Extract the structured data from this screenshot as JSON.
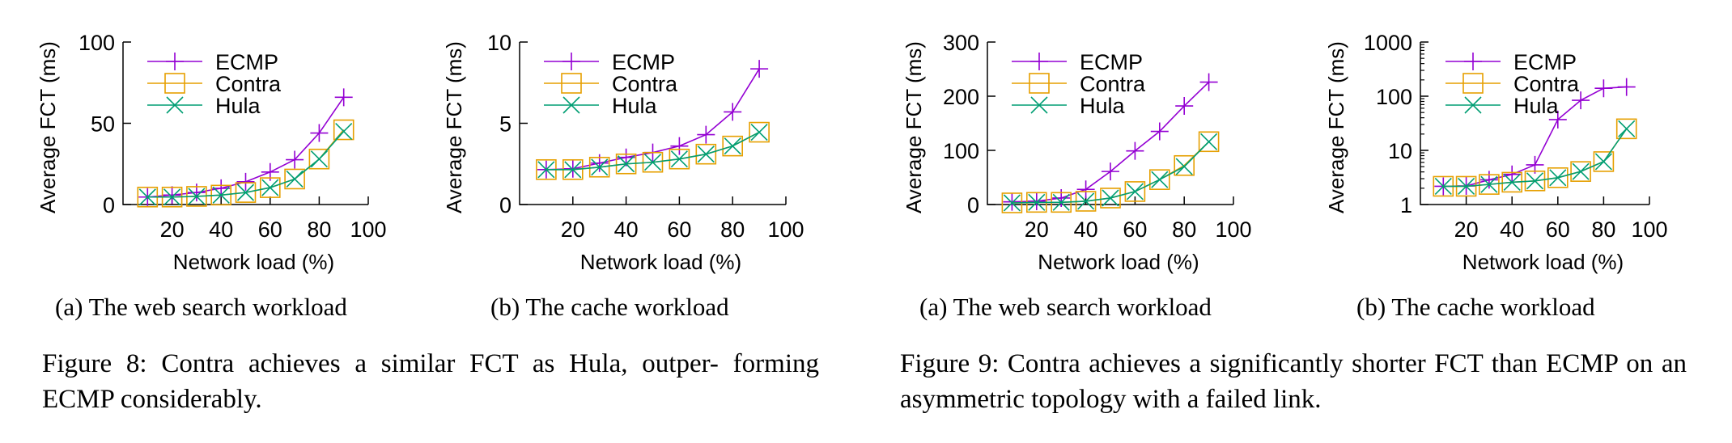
{
  "colors": {
    "ECMP": "#9400d3",
    "Contra": "#e69f00",
    "Hula": "#009e73"
  },
  "chart_data": [
    {
      "type": "line",
      "figure": "Figure 8",
      "subcaption": "(a) The web search workload",
      "xlabel": "Network load (%)",
      "ylabel": "Average FCT (ms)",
      "xlim": [
        0,
        100
      ],
      "xticks": [
        "20",
        "40",
        "60",
        "80",
        "100"
      ],
      "ylim": [
        0,
        100
      ],
      "yscale": "linear",
      "yticks": [
        "0",
        "50",
        "100"
      ],
      "legend_position": "top-left",
      "x": [
        10,
        20,
        30,
        40,
        50,
        60,
        70,
        80,
        90
      ],
      "series": [
        {
          "name": "ECMP",
          "marker": "plus",
          "values": [
            4.6,
            5.8,
            7.4,
            10,
            14,
            20,
            27.6,
            44,
            66
          ]
        },
        {
          "name": "Contra",
          "marker": "square",
          "values": [
            4.6,
            4.6,
            5,
            5.8,
            7.4,
            10.4,
            15.7,
            28,
            46
          ]
        },
        {
          "name": "Hula",
          "marker": "cross",
          "values": [
            4.6,
            4.6,
            5,
            5.8,
            7.4,
            10.4,
            15.7,
            28,
            45
          ]
        }
      ]
    },
    {
      "type": "line",
      "figure": "Figure 8",
      "subcaption": "(b) The cache workload",
      "xlabel": "Network load (%)",
      "ylabel": "Average FCT (ms)",
      "xlim": [
        0,
        100
      ],
      "xticks": [
        "20",
        "40",
        "60",
        "80",
        "100"
      ],
      "ylim": [
        0,
        10
      ],
      "yscale": "linear",
      "yticks": [
        "0",
        "5",
        "10"
      ],
      "legend_position": "top-left",
      "x": [
        10,
        20,
        30,
        40,
        50,
        60,
        70,
        80,
        90
      ],
      "series": [
        {
          "name": "ECMP",
          "marker": "plus",
          "values": [
            2.15,
            2.2,
            2.55,
            2.9,
            3.2,
            3.6,
            4.3,
            5.7,
            8.35
          ]
        },
        {
          "name": "Contra",
          "marker": "square",
          "values": [
            2.15,
            2.15,
            2.3,
            2.5,
            2.6,
            2.8,
            3.1,
            3.6,
            4.45
          ]
        },
        {
          "name": "Hula",
          "marker": "cross",
          "values": [
            2.15,
            2.15,
            2.3,
            2.5,
            2.6,
            2.8,
            3.1,
            3.6,
            4.45
          ]
        }
      ]
    },
    {
      "type": "line",
      "figure": "Figure 9",
      "subcaption": "(a) The web search workload",
      "xlabel": "Network load (%)",
      "ylabel": "Average FCT (ms)",
      "xlim": [
        0,
        100
      ],
      "xticks": [
        "20",
        "40",
        "60",
        "80",
        "100"
      ],
      "ylim": [
        0,
        300
      ],
      "yscale": "linear",
      "yticks": [
        "0",
        "100",
        "200",
        "300"
      ],
      "legend_position": "top-left",
      "x": [
        10,
        20,
        30,
        40,
        50,
        60,
        70,
        80,
        90
      ],
      "series": [
        {
          "name": "ECMP",
          "marker": "plus",
          "values": [
            5,
            6,
            12,
            28,
            61,
            99,
            135,
            182,
            226
          ]
        },
        {
          "name": "Contra",
          "marker": "square",
          "values": [
            3,
            4,
            4,
            6,
            12,
            24,
            46,
            72,
            116
          ]
        },
        {
          "name": "Hula",
          "marker": "cross",
          "values": [
            3,
            4,
            4,
            6,
            12,
            24,
            46,
            70,
            116
          ]
        }
      ]
    },
    {
      "type": "line",
      "figure": "Figure 9",
      "subcaption": "(b) The cache workload",
      "xlabel": "Network load (%)",
      "ylabel": "Average FCT (ms)",
      "xlim": [
        0,
        100
      ],
      "xticks": [
        "20",
        "40",
        "60",
        "80",
        "100"
      ],
      "ylim": [
        1,
        1000
      ],
      "yscale": "log",
      "yticks": [
        "1",
        "10",
        "100",
        "1000"
      ],
      "legend_position": "top-left",
      "x": [
        10,
        20,
        30,
        40,
        50,
        60,
        70,
        80,
        90
      ],
      "series": [
        {
          "name": "ECMP",
          "marker": "plus",
          "values": [
            2.17,
            2.2,
            2.86,
            3.6,
            5.4,
            37,
            84,
            140,
            148
          ]
        },
        {
          "name": "Contra",
          "marker": "square",
          "values": [
            2.17,
            2.17,
            2.35,
            2.58,
            2.73,
            3.13,
            4.07,
            6.2,
            25
          ]
        },
        {
          "name": "Hula",
          "marker": "cross",
          "values": [
            2.17,
            2.17,
            2.35,
            2.58,
            2.73,
            3.13,
            4.07,
            6.2,
            25
          ]
        }
      ]
    }
  ],
  "captions": {
    "figure8": "Figure 8:  Contra achieves a similar FCT as Hula, outper- forming ECMP considerably.",
    "figure9": "Figure 9:  Contra achieves a significantly shorter FCT than ECMP on an asymmetric topology with a failed link."
  }
}
